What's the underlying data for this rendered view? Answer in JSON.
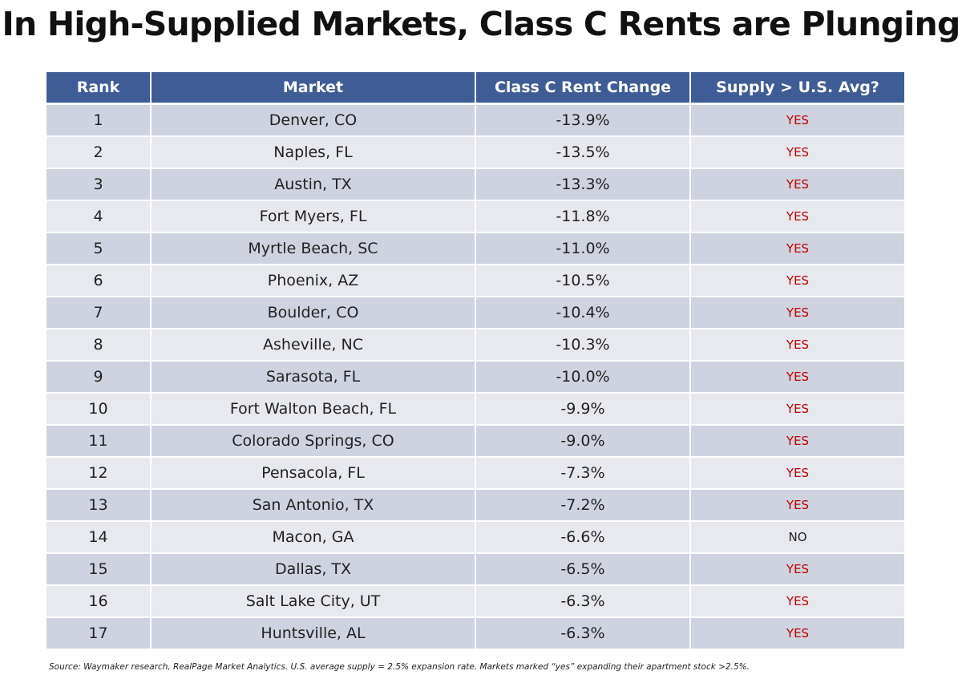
{
  "title": "In High-Supplied Markets, Class C Rents are Plunging",
  "chart_data": {
    "type": "table",
    "title": "In High-Supplied Markets, Class C Rents are Plunging",
    "columns": [
      "Rank",
      "Market",
      "Class C Rent Change",
      "Supply > U.S. Avg?"
    ],
    "rows": [
      {
        "rank": "1",
        "market": "Denver, CO",
        "change": "-13.9%",
        "supply": "YES"
      },
      {
        "rank": "2",
        "market": "Naples, FL",
        "change": "-13.5%",
        "supply": "YES"
      },
      {
        "rank": "3",
        "market": "Austin, TX",
        "change": "-13.3%",
        "supply": "YES"
      },
      {
        "rank": "4",
        "market": "Fort Myers, FL",
        "change": "-11.8%",
        "supply": "YES"
      },
      {
        "rank": "5",
        "market": "Myrtle Beach, SC",
        "change": "-11.0%",
        "supply": "YES"
      },
      {
        "rank": "6",
        "market": "Phoenix, AZ",
        "change": "-10.5%",
        "supply": "YES"
      },
      {
        "rank": "7",
        "market": "Boulder, CO",
        "change": "-10.4%",
        "supply": "YES"
      },
      {
        "rank": "8",
        "market": "Asheville, NC",
        "change": "-10.3%",
        "supply": "YES"
      },
      {
        "rank": "9",
        "market": "Sarasota, FL",
        "change": "-10.0%",
        "supply": "YES"
      },
      {
        "rank": "10",
        "market": "Fort Walton Beach, FL",
        "change": "-9.9%",
        "supply": "YES"
      },
      {
        "rank": "11",
        "market": "Colorado Springs, CO",
        "change": "-9.0%",
        "supply": "YES"
      },
      {
        "rank": "12",
        "market": "Pensacola, FL",
        "change": "-7.3%",
        "supply": "YES"
      },
      {
        "rank": "13",
        "market": "San Antonio, TX",
        "change": "-7.2%",
        "supply": "YES"
      },
      {
        "rank": "14",
        "market": "Macon, GA",
        "change": "-6.6%",
        "supply": "NO"
      },
      {
        "rank": "15",
        "market": "Dallas, TX",
        "change": "-6.5%",
        "supply": "YES"
      },
      {
        "rank": "16",
        "market": "Salt Lake City, UT",
        "change": "-6.3%",
        "supply": "YES"
      },
      {
        "rank": "17",
        "market": "Huntsville, AL",
        "change": "-6.3%",
        "supply": "YES"
      }
    ]
  },
  "colors": {
    "header_bg": "#3e5d96",
    "row_dark": "#cfd3df",
    "row_light": "#e8e9ef",
    "yes_text": "#c00000",
    "no_text": "#222222"
  },
  "source": "Source: Waymaker research, RealPage Market Analytics. U.S. average supply = 2.5% expansion rate. Markets marked “yes” expanding their apartment stock >2.5%."
}
